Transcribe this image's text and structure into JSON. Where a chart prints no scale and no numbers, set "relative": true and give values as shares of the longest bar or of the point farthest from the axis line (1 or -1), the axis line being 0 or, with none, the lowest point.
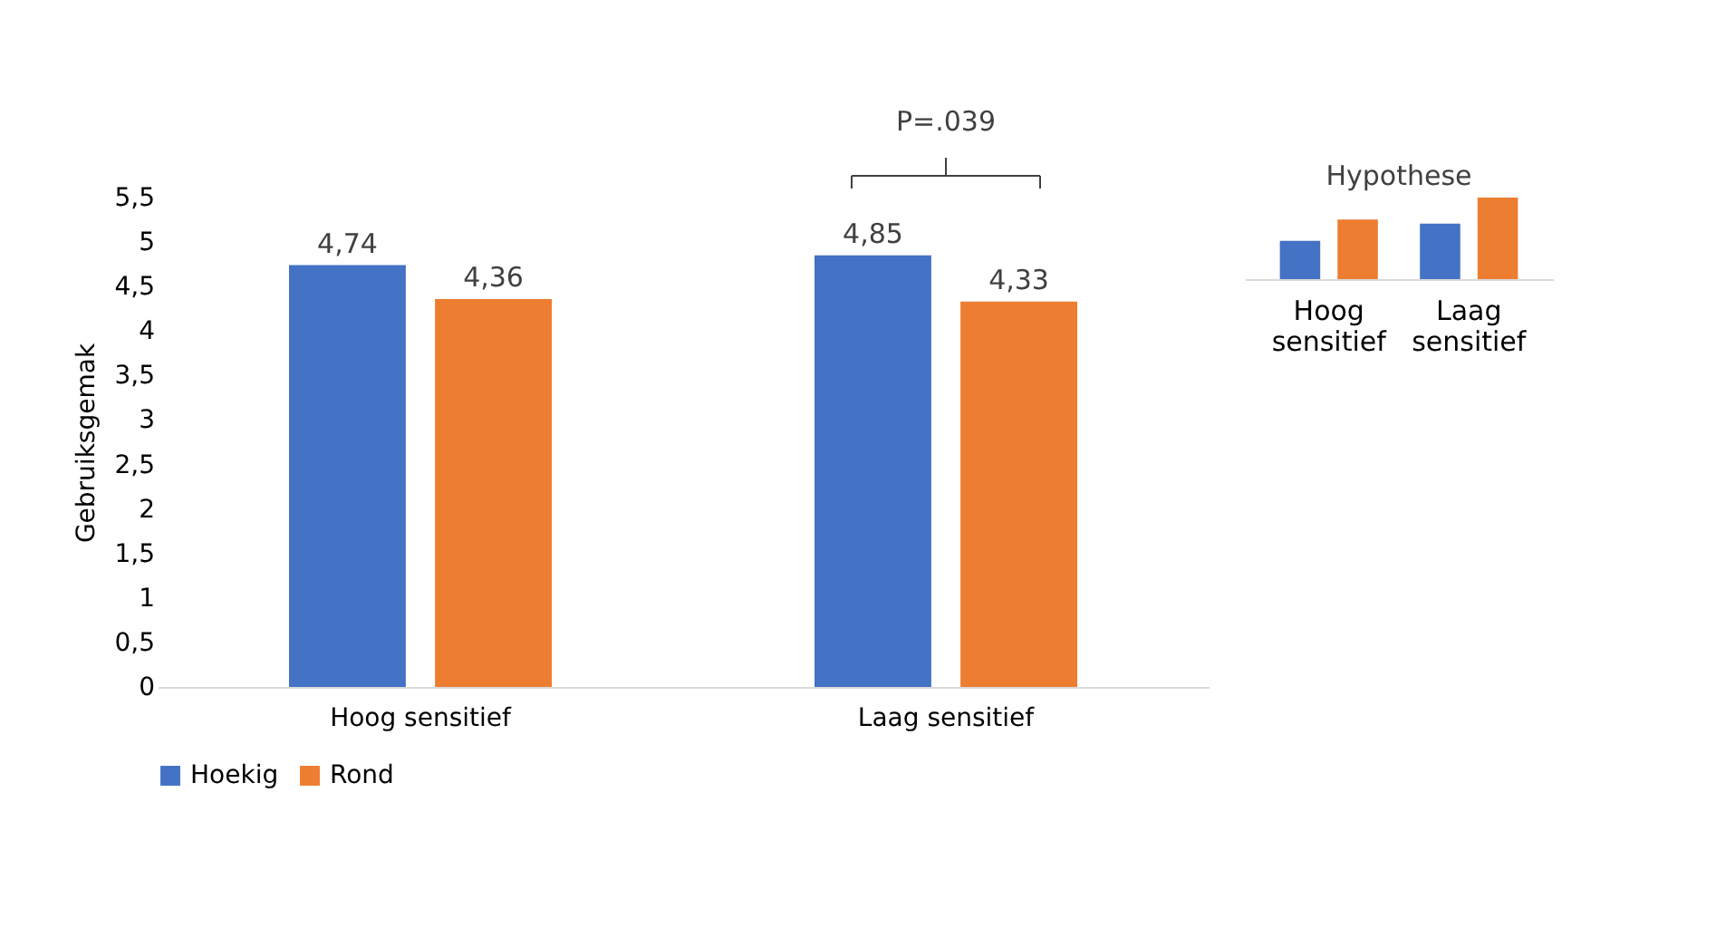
{
  "chart_data": [
    {
      "type": "bar",
      "ylabel": "Gebruiksgemak",
      "categories": [
        "Hoog sensitief",
        "Laag sensitief"
      ],
      "series": [
        {
          "name": "Hoekig",
          "color": "#4472c4",
          "values": [
            4.74,
            4.85
          ],
          "value_labels": [
            "4,74",
            "4,85"
          ]
        },
        {
          "name": "Rond",
          "color": "#ed7d31",
          "values": [
            4.36,
            4.33
          ],
          "value_labels": [
            "4,36",
            "4,33"
          ]
        }
      ],
      "ylim": [
        0,
        5.5
      ],
      "yticks": [
        0,
        {
          "value": 0.5,
          "label": "0,5"
        },
        1,
        {
          "value": 1.5,
          "label": "1,5"
        },
        2,
        {
          "value": 2.5,
          "label": "2,5"
        },
        3,
        {
          "value": 3.5,
          "label": "3,5"
        },
        4,
        {
          "value": 4.5,
          "label": "4,5"
        },
        5,
        {
          "value": 5.5,
          "label": "5,5"
        }
      ],
      "grid": false,
      "legend": "bottom",
      "annotations": [
        "P=.039"
      ]
    },
    {
      "type": "bar",
      "title": "Hypothese",
      "categories": [
        "Hoog sensitief",
        "Laag sensitief"
      ],
      "relative": true,
      "series": [
        {
          "color": "#4472c4",
          "values": [
            0.47,
            0.68
          ]
        },
        {
          "color": "#ed7d31",
          "values": [
            0.73,
            1
          ]
        }
      ],
      "legend": false
    }
  ]
}
